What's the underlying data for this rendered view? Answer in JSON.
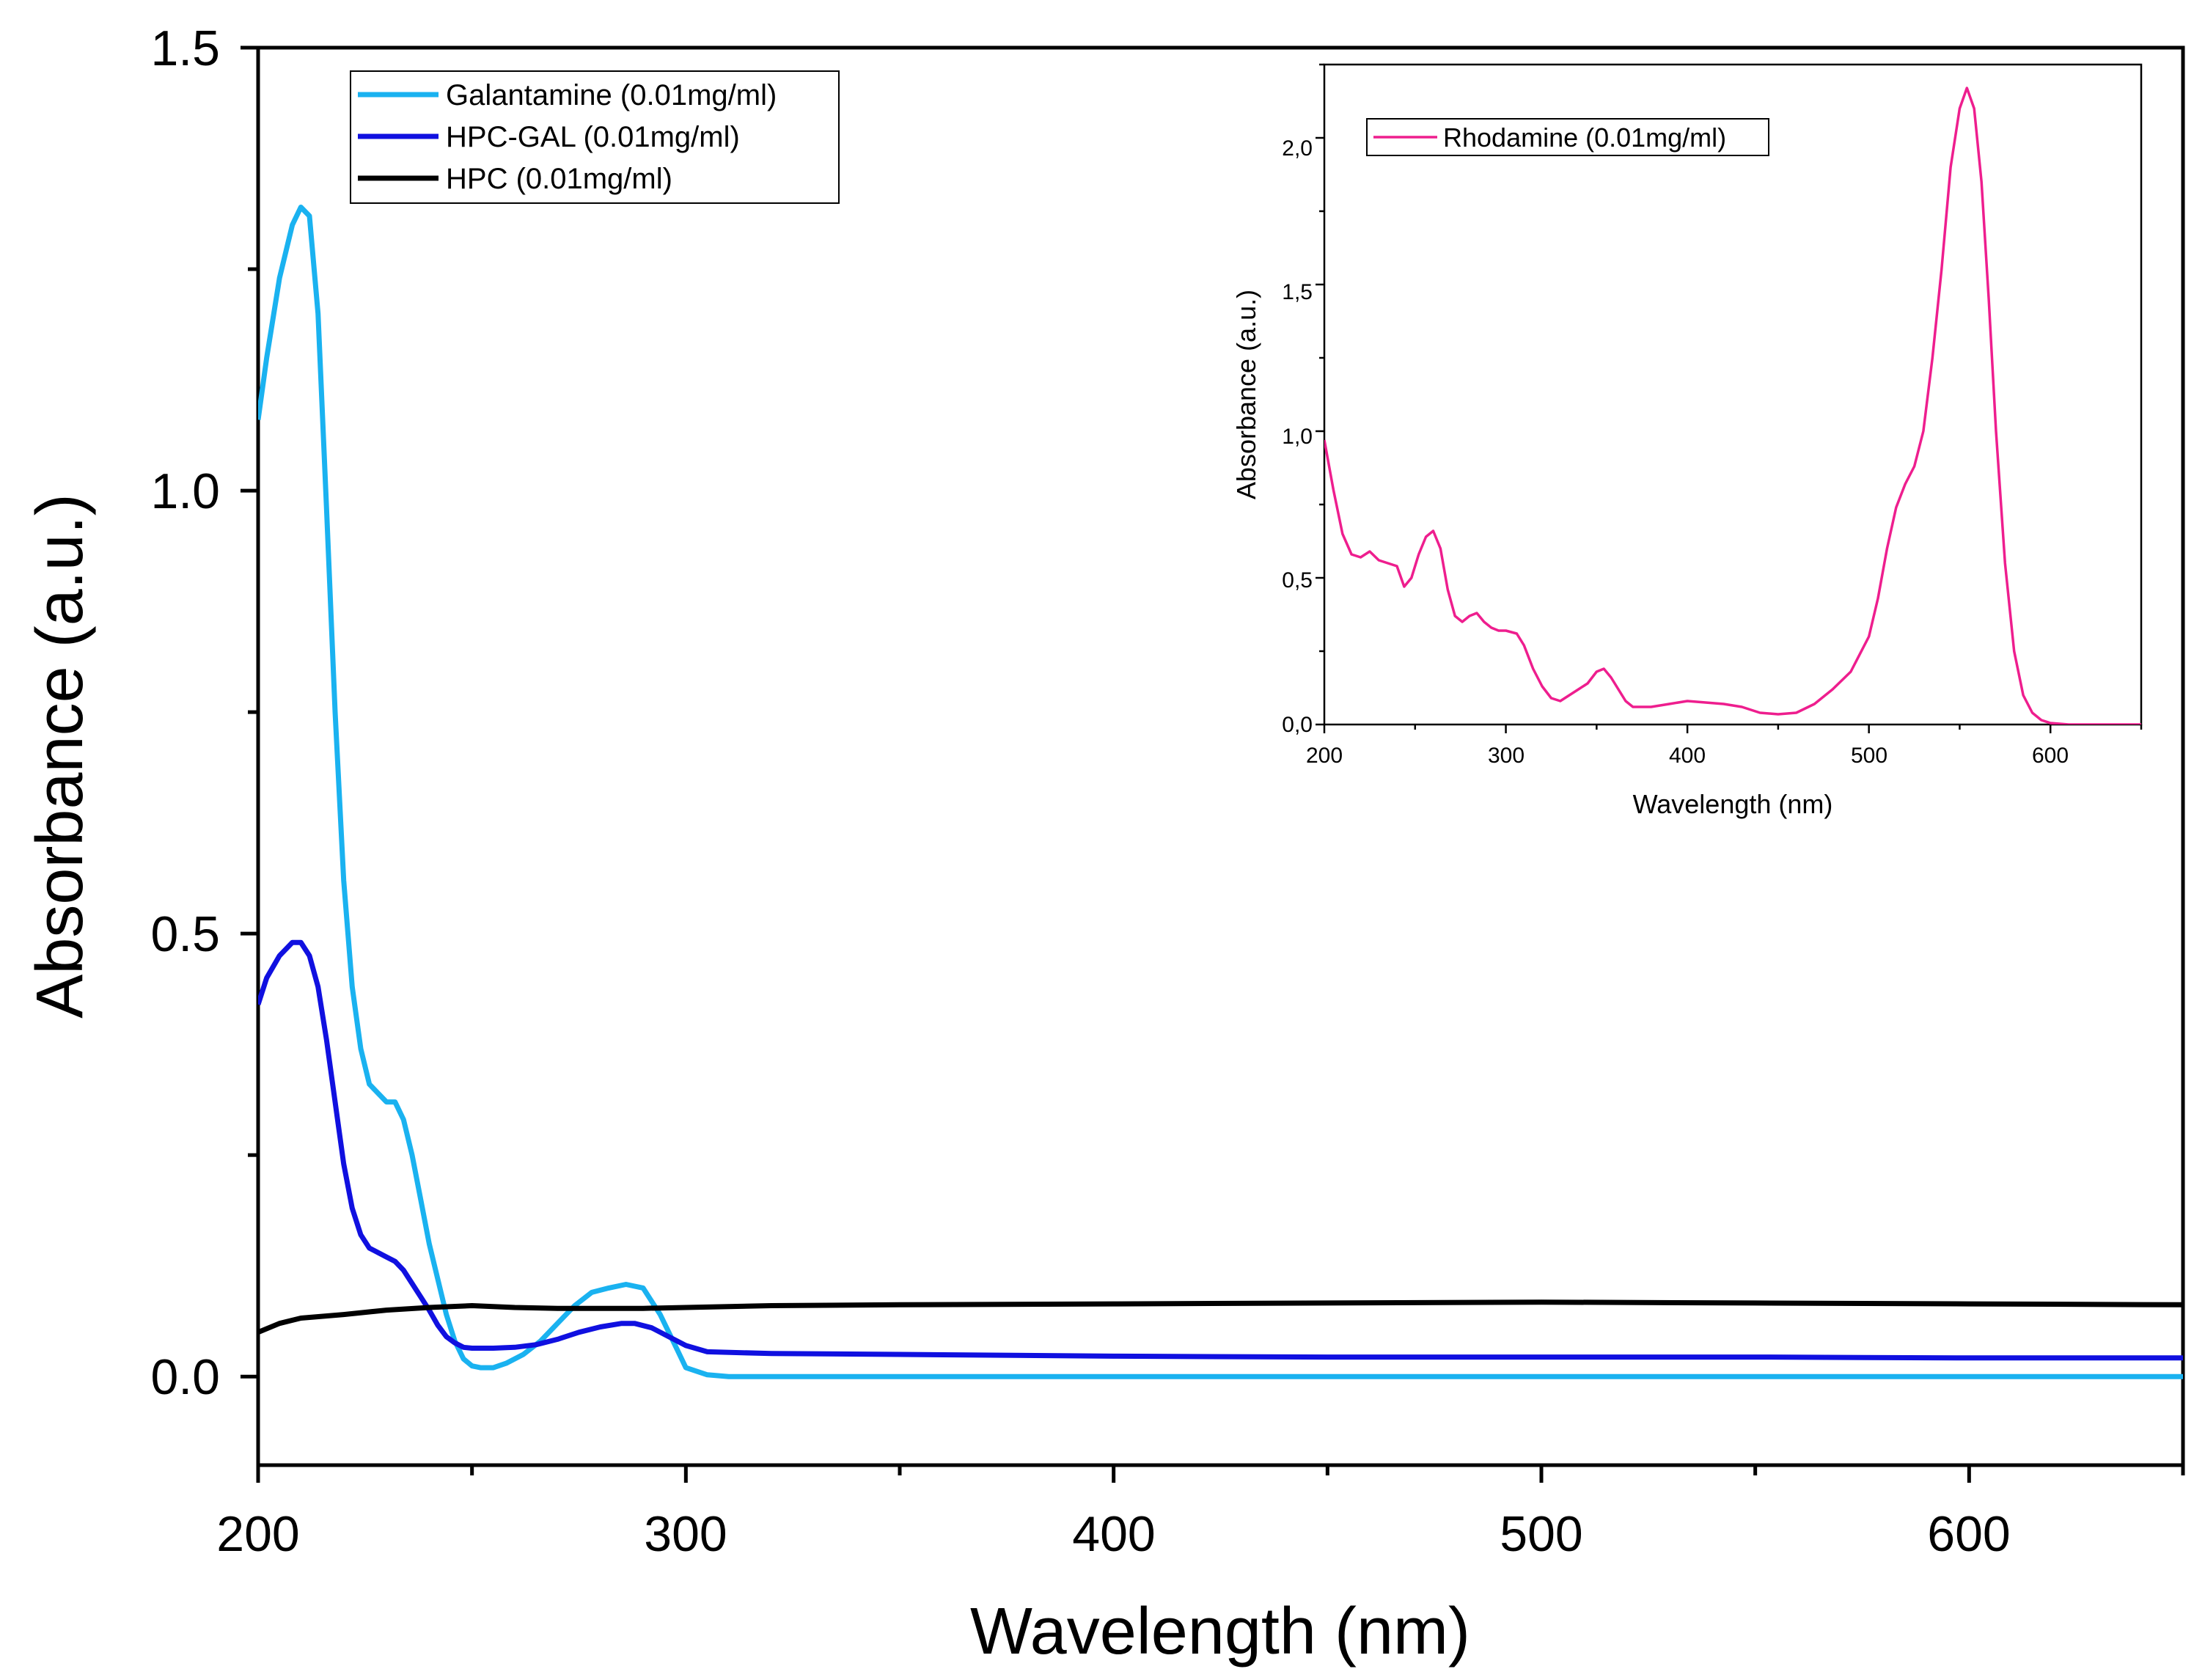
{
  "chart_data": [
    {
      "type": "line",
      "xlabel": "Wavelength (nm)",
      "ylabel": "Absorbance (a.u.)",
      "xlim": [
        200,
        650
      ],
      "ylim": [
        -0.1,
        1.5
      ],
      "xticks": [
        200,
        300,
        400,
        500,
        600
      ],
      "xtick_labels": [
        "200",
        "300",
        "400",
        "500",
        "600"
      ],
      "yticks": [
        0.0,
        0.5,
        1.0,
        1.5
      ],
      "ytick_labels": [
        "0.0",
        "0.5",
        "1.0",
        "1.5"
      ],
      "legend_position": "top-left",
      "series": [
        {
          "name": "Galantamine (0.01mg/ml)",
          "color": "#1ab2f0",
          "x": [
            200,
            202,
            205,
            208,
            210,
            212,
            214,
            216,
            218,
            220,
            222,
            224,
            226,
            228,
            230,
            232,
            234,
            236,
            238,
            240,
            242,
            244,
            246,
            248,
            250,
            252,
            255,
            258,
            262,
            266,
            270,
            274,
            278,
            282,
            286,
            290,
            294,
            298,
            300,
            305,
            310,
            320,
            350,
            400,
            450,
            500,
            550,
            600,
            650
          ],
          "y": [
            1.08,
            1.15,
            1.24,
            1.3,
            1.32,
            1.31,
            1.2,
            0.98,
            0.75,
            0.56,
            0.44,
            0.37,
            0.33,
            0.32,
            0.31,
            0.31,
            0.29,
            0.25,
            0.2,
            0.15,
            0.11,
            0.07,
            0.04,
            0.02,
            0.012,
            0.01,
            0.01,
            0.015,
            0.025,
            0.04,
            0.06,
            0.08,
            0.095,
            0.1,
            0.104,
            0.1,
            0.07,
            0.03,
            0.01,
            0.002,
            0.0,
            0.0,
            0.0,
            0.0,
            0.0,
            0.0,
            0.0,
            0.0,
            0.0
          ]
        },
        {
          "name": "HPC-GAL (0.01mg/ml)",
          "color": "#1010e0",
          "x": [
            200,
            202,
            205,
            208,
            210,
            212,
            214,
            216,
            218,
            220,
            222,
            224,
            226,
            228,
            230,
            232,
            234,
            236,
            238,
            240,
            242,
            244,
            246,
            248,
            250,
            255,
            260,
            265,
            270,
            275,
            280,
            285,
            288,
            292,
            296,
            300,
            305,
            320,
            350,
            400,
            450,
            500,
            550,
            600,
            650
          ],
          "y": [
            0.42,
            0.45,
            0.475,
            0.49,
            0.49,
            0.475,
            0.44,
            0.38,
            0.31,
            0.24,
            0.19,
            0.16,
            0.145,
            0.14,
            0.135,
            0.13,
            0.12,
            0.105,
            0.09,
            0.075,
            0.058,
            0.045,
            0.038,
            0.033,
            0.032,
            0.032,
            0.033,
            0.036,
            0.042,
            0.05,
            0.056,
            0.06,
            0.06,
            0.055,
            0.045,
            0.035,
            0.028,
            0.026,
            0.025,
            0.023,
            0.022,
            0.022,
            0.022,
            0.021,
            0.021
          ]
        },
        {
          "name": "HPC (0.01mg/ml)",
          "color": "#000000",
          "x": [
            200,
            205,
            210,
            220,
            230,
            240,
            250,
            260,
            270,
            280,
            290,
            300,
            320,
            350,
            400,
            450,
            500,
            550,
            600,
            650
          ],
          "y": [
            0.05,
            0.06,
            0.066,
            0.07,
            0.075,
            0.078,
            0.08,
            0.078,
            0.077,
            0.077,
            0.077,
            0.078,
            0.08,
            0.081,
            0.082,
            0.083,
            0.084,
            0.083,
            0.082,
            0.081
          ]
        }
      ]
    },
    {
      "type": "line",
      "xlabel": "Wavelength (nm)",
      "ylabel": "Absorbance (a.u.)",
      "xlim": [
        200,
        650
      ],
      "ylim": [
        0,
        2.25
      ],
      "xticks": [
        200,
        300,
        400,
        500,
        600
      ],
      "xtick_labels": [
        "200",
        "300",
        "400",
        "500",
        "600"
      ],
      "yticks": [
        0.0,
        0.5,
        1.0,
        1.5,
        2.0
      ],
      "ytick_labels": [
        "0,0",
        "0,5",
        "1,0",
        "1,5",
        "2,0"
      ],
      "legend_position": "top-left",
      "series": [
        {
          "name": "Rhodamine (0.01mg/ml)",
          "color": "#ee1e8e",
          "x": [
            200,
            205,
            210,
            215,
            220,
            225,
            230,
            235,
            240,
            244,
            248,
            252,
            256,
            260,
            264,
            268,
            272,
            276,
            280,
            284,
            288,
            292,
            296,
            300,
            306,
            310,
            315,
            320,
            325,
            330,
            335,
            340,
            345,
            350,
            354,
            358,
            362,
            366,
            370,
            380,
            390,
            400,
            410,
            420,
            430,
            440,
            450,
            460,
            470,
            480,
            490,
            500,
            505,
            510,
            515,
            520,
            525,
            530,
            535,
            540,
            545,
            550,
            554,
            558,
            562,
            566,
            570,
            575,
            580,
            585,
            590,
            595,
            600,
            610,
            620,
            650
          ],
          "y": [
            0.97,
            0.8,
            0.65,
            0.58,
            0.57,
            0.59,
            0.56,
            0.55,
            0.54,
            0.47,
            0.5,
            0.58,
            0.64,
            0.66,
            0.6,
            0.46,
            0.37,
            0.35,
            0.37,
            0.38,
            0.35,
            0.33,
            0.32,
            0.32,
            0.31,
            0.27,
            0.19,
            0.13,
            0.09,
            0.08,
            0.1,
            0.12,
            0.14,
            0.18,
            0.19,
            0.16,
            0.12,
            0.08,
            0.06,
            0.06,
            0.07,
            0.08,
            0.075,
            0.07,
            0.06,
            0.04,
            0.035,
            0.04,
            0.07,
            0.12,
            0.18,
            0.3,
            0.43,
            0.6,
            0.74,
            0.82,
            0.88,
            1.0,
            1.25,
            1.55,
            1.9,
            2.1,
            2.17,
            2.1,
            1.85,
            1.45,
            1.0,
            0.55,
            0.25,
            0.1,
            0.04,
            0.015,
            0.005,
            0.0,
            0.0,
            0.0
          ]
        }
      ]
    }
  ]
}
